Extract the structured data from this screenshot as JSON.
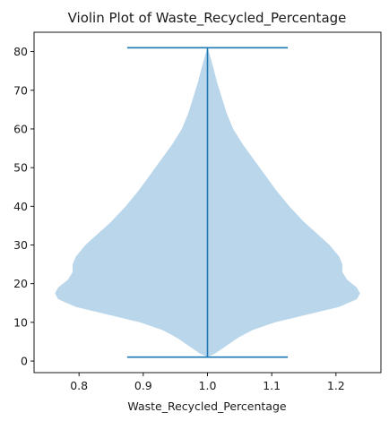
{
  "chart_data": {
    "type": "violin",
    "title": "Violin Plot of Waste_Recycled_Percentage",
    "xlabel": "Waste_Recycled_Percentage",
    "ylabel": "",
    "xlim": [
      0.73,
      1.27
    ],
    "ylim": [
      -3,
      85
    ],
    "xticks": [
      0.8,
      0.9,
      1.0,
      1.1,
      1.2
    ],
    "xtick_labels": [
      "0.8",
      "0.9",
      "1.0",
      "1.1",
      "1.2"
    ],
    "yticks": [
      0,
      10,
      20,
      30,
      40,
      50,
      60,
      70,
      80
    ],
    "ytick_labels": [
      "0",
      "10",
      "20",
      "30",
      "40",
      "50",
      "60",
      "70",
      "80"
    ],
    "grid": false,
    "position": 1.0,
    "min": 1,
    "max": 81,
    "cap_half_width": 0.125,
    "body_color": "#bad6ea",
    "line_color": "#1f77b4",
    "density_profile": [
      {
        "y": 1,
        "w": 0.0
      },
      {
        "y": 2,
        "w": 0.05
      },
      {
        "y": 4,
        "w": 0.12
      },
      {
        "y": 6,
        "w": 0.19
      },
      {
        "y": 8,
        "w": 0.28
      },
      {
        "y": 10,
        "w": 0.42
      },
      {
        "y": 12,
        "w": 0.62
      },
      {
        "y": 14,
        "w": 0.82
      },
      {
        "y": 16,
        "w": 0.93
      },
      {
        "y": 17.5,
        "w": 0.95
      },
      {
        "y": 19,
        "w": 0.93
      },
      {
        "y": 21,
        "w": 0.87
      },
      {
        "y": 23,
        "w": 0.84
      },
      {
        "y": 25,
        "w": 0.84
      },
      {
        "y": 27,
        "w": 0.82
      },
      {
        "y": 30,
        "w": 0.76
      },
      {
        "y": 33,
        "w": 0.68
      },
      {
        "y": 36,
        "w": 0.6
      },
      {
        "y": 40,
        "w": 0.51
      },
      {
        "y": 44,
        "w": 0.43
      },
      {
        "y": 48,
        "w": 0.36
      },
      {
        "y": 52,
        "w": 0.29
      },
      {
        "y": 56,
        "w": 0.22
      },
      {
        "y": 60,
        "w": 0.16
      },
      {
        "y": 64,
        "w": 0.12
      },
      {
        "y": 68,
        "w": 0.09
      },
      {
        "y": 72,
        "w": 0.06
      },
      {
        "y": 76,
        "w": 0.035
      },
      {
        "y": 79,
        "w": 0.015
      },
      {
        "y": 81,
        "w": 0.0
      }
    ],
    "max_half_width": 0.25
  }
}
